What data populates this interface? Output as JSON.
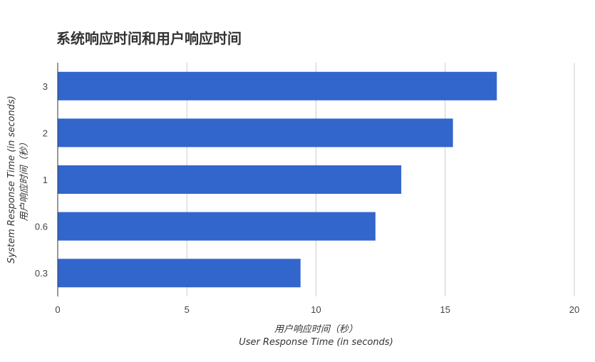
{
  "chart_data": {
    "type": "bar",
    "orientation": "horizontal",
    "title": "系统响应时间和用户响应时间",
    "categories": [
      "3",
      "2",
      "1",
      "0.6",
      "0.3"
    ],
    "values": [
      17,
      15.3,
      13.3,
      12.3,
      9.4
    ],
    "xlabel_line1": "用户响应时间（秒）",
    "xlabel_line2": "User Response Time (in seconds)",
    "ylabel_line1": "System Response Time (in seconds)",
    "ylabel_line2": "用户响应时间（秒）",
    "xlim": [
      0,
      20
    ],
    "xticks": [
      0,
      5,
      10,
      15,
      20
    ],
    "grid": true,
    "bar_color": "#3366cc",
    "grid_color": "#cccccc",
    "axis_color": "#333333"
  }
}
